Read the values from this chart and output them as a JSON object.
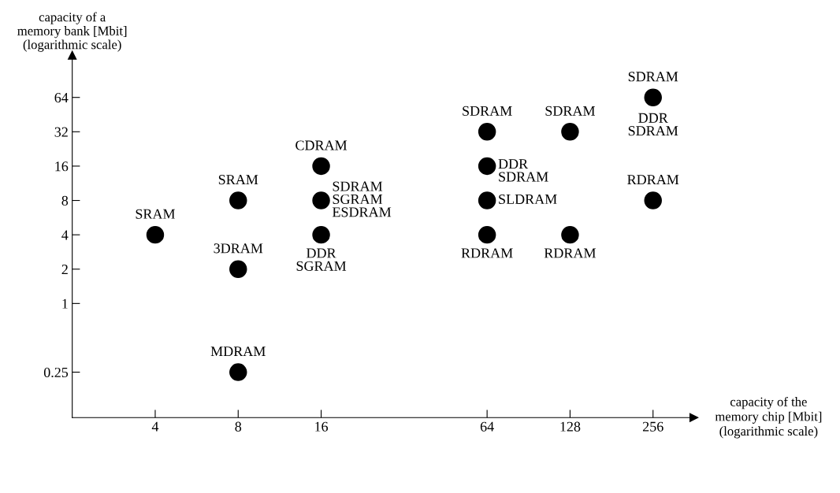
{
  "chart_data": {
    "type": "scatter",
    "xlabel": "capacity of the\nmemory chip [Mbit]\n(logarithmic scale)",
    "ylabel": "capacity of a\nmemory bank [Mbit]\n(logarithmic scale)",
    "x": [
      4,
      8,
      8,
      8,
      16,
      16,
      16,
      64,
      64,
      64,
      64,
      128,
      128,
      256,
      256
    ],
    "series": [
      {
        "color": "#000000",
        "values": [
          4,
          8,
          2,
          0.25,
          16,
          8,
          4,
          32,
          16,
          8,
          4,
          32,
          4,
          64,
          8
        ]
      }
    ],
    "log": "xy",
    "marker": "circle",
    "grid": false,
    "legend": false,
    "xlim": [
      2,
      360
    ],
    "ylim": [
      0.1,
      150
    ],
    "xticks": [
      4,
      8,
      16,
      64,
      128,
      256
    ],
    "yticks": [
      0.25,
      1,
      2,
      4,
      8,
      16,
      32,
      64
    ],
    "annotations": [
      {
        "text": "SRAM",
        "x": 4,
        "y": 4
      },
      {
        "text": "SRAM",
        "x": 8,
        "y": 8
      },
      {
        "text": "3DRAM",
        "x": 8,
        "y": 2
      },
      {
        "text": "MDRAM",
        "x": 8,
        "y": 0.25
      },
      {
        "text": "CDRAM",
        "x": 16,
        "y": 16
      },
      {
        "text": "SDRAM\nSGRAM\nESDRAM",
        "x": 16,
        "y": 8
      },
      {
        "text": "DDR\nSGRAM",
        "x": 16,
        "y": 4
      },
      {
        "text": "SDRAM",
        "x": 64,
        "y": 32
      },
      {
        "text": "DDR\nSDRAM",
        "x": 64,
        "y": 16
      },
      {
        "text": "SLDRAM",
        "x": 64,
        "y": 8
      },
      {
        "text": "RDRAM",
        "x": 64,
        "y": 4
      },
      {
        "text": "SDRAM",
        "x": 128,
        "y": 32
      },
      {
        "text": "RDRAM",
        "x": 128,
        "y": 4
      },
      {
        "text": "SDRAM",
        "x": 256,
        "y": 64
      },
      {
        "text": "DDR\nSDRAM",
        "x": 256,
        "y": 64
      },
      {
        "text": "RDRAM",
        "x": 256,
        "y": 8
      }
    ]
  }
}
